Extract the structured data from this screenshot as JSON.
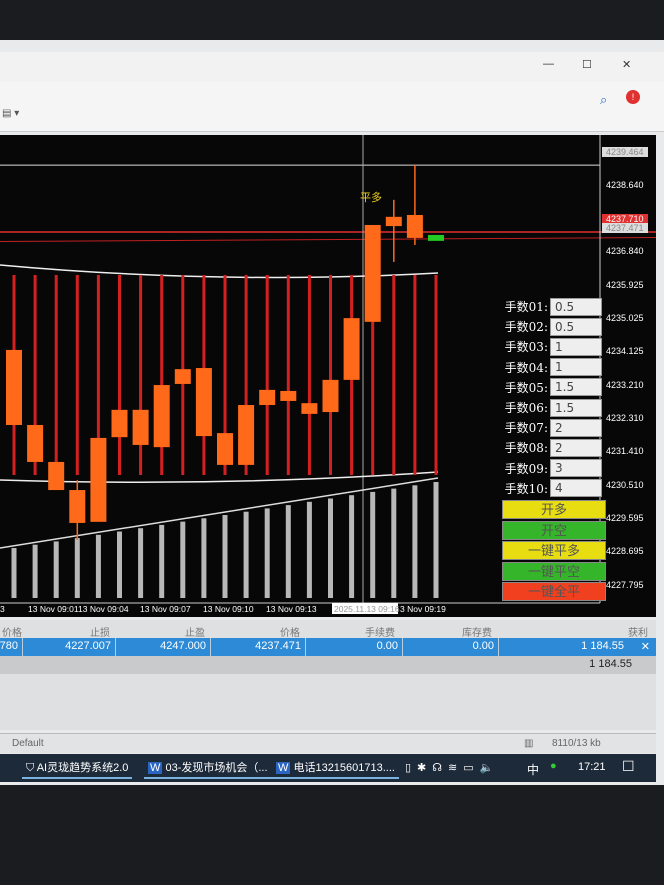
{
  "chart_data": {
    "type": "candlestick",
    "price_axis": [
      "4239.464",
      "4238.640",
      "4237.710",
      "4237.471",
      "4236.840",
      "4235.925",
      "4235.025",
      "4234.125",
      "4233.210",
      "4232.310",
      "4231.410",
      "4230.510",
      "4229.595",
      "4228.695",
      "4227.795"
    ],
    "time_axis": [
      "3",
      "13 Nov 09:01",
      "13 Nov 09:04",
      "13 Nov 09:07",
      "13 Nov 09:10",
      "13 Nov 09:13",
      "2025.11.13 09:16",
      "3 Nov 09:19"
    ],
    "signal_label": "平多",
    "candles": [
      {
        "o": 4232.23,
        "c": 4234.26
      },
      {
        "o": 4231.23,
        "c": 4232.23
      },
      {
        "o": 4230.47,
        "c": 4231.23
      },
      {
        "o": 4229.58,
        "c": 4230.47,
        "h": 4230.74,
        "l": 4229.12
      },
      {
        "o": 4229.61,
        "c": 4231.88
      },
      {
        "o": 4231.9,
        "c": 4232.64
      },
      {
        "o": 4231.69,
        "c": 4232.64
      },
      {
        "o": 4231.63,
        "c": 4233.31
      },
      {
        "o": 4233.34,
        "c": 4233.74
      },
      {
        "o": 4231.93,
        "c": 4233.77
      },
      {
        "o": 4231.15,
        "c": 4232.01
      },
      {
        "o": 4231.15,
        "c": 4232.77
      },
      {
        "o": 4232.77,
        "c": 4233.18
      },
      {
        "o": 4232.88,
        "c": 4233.15
      },
      {
        "o": 4232.53,
        "c": 4232.82
      },
      {
        "o": 4232.58,
        "c": 4233.45
      },
      {
        "o": 4233.45,
        "c": 4235.12
      },
      {
        "o": 4235.02,
        "c": 4237.64
      },
      {
        "o": 4237.61,
        "c": 4237.86,
        "h": 4238.32,
        "l": 4236.64
      },
      {
        "o": 4237.29,
        "c": 4237.91,
        "h": 4239.26,
        "l": 4237.1
      },
      {
        "o": 4237.37,
        "c": 4237.21
      }
    ],
    "colors": {
      "up": "#ff6a1a",
      "down": "#22cc22",
      "ma": "#d42020"
    }
  },
  "panel": {
    "lots": [
      {
        "label": "手数01:",
        "value": "0.5"
      },
      {
        "label": "手数02:",
        "value": "0.5"
      },
      {
        "label": "手数03:",
        "value": "1"
      },
      {
        "label": "手数04:",
        "value": "1"
      },
      {
        "label": "手数05:",
        "value": "1.5"
      },
      {
        "label": "手数06:",
        "value": "1.5"
      },
      {
        "label": "手数07:",
        "value": "2"
      },
      {
        "label": "手数08:",
        "value": "2"
      },
      {
        "label": "手数09:",
        "value": "3"
      },
      {
        "label": "手数10:",
        "value": "4"
      }
    ],
    "buttons": [
      {
        "label": "开多",
        "color": "#e8dd10"
      },
      {
        "label": "开空",
        "color": "#35b52a"
      },
      {
        "label": "一键平多",
        "color": "#e8dd10"
      },
      {
        "label": "一键平空",
        "color": "#35b52a"
      },
      {
        "label": "一键全平",
        "color": "#f04020"
      }
    ]
  },
  "table": {
    "headers": [
      "价格",
      "止损",
      "止盈",
      "价格",
      "手续费",
      "库存费",
      "获利"
    ],
    "row": [
      ".780",
      "4227.007",
      "4247.000",
      "4237.471",
      "0.00",
      "0.00",
      "1 184.55"
    ],
    "total": "1 184.55"
  },
  "status": {
    "profile": "Default",
    "traffic": "8110/13 kb"
  },
  "taskbar": {
    "items": [
      "AI灵珑趋势系统2.0",
      "03-发现市场机会（...",
      "电话13215601713...."
    ],
    "ime": "中",
    "clock": "17:21"
  }
}
